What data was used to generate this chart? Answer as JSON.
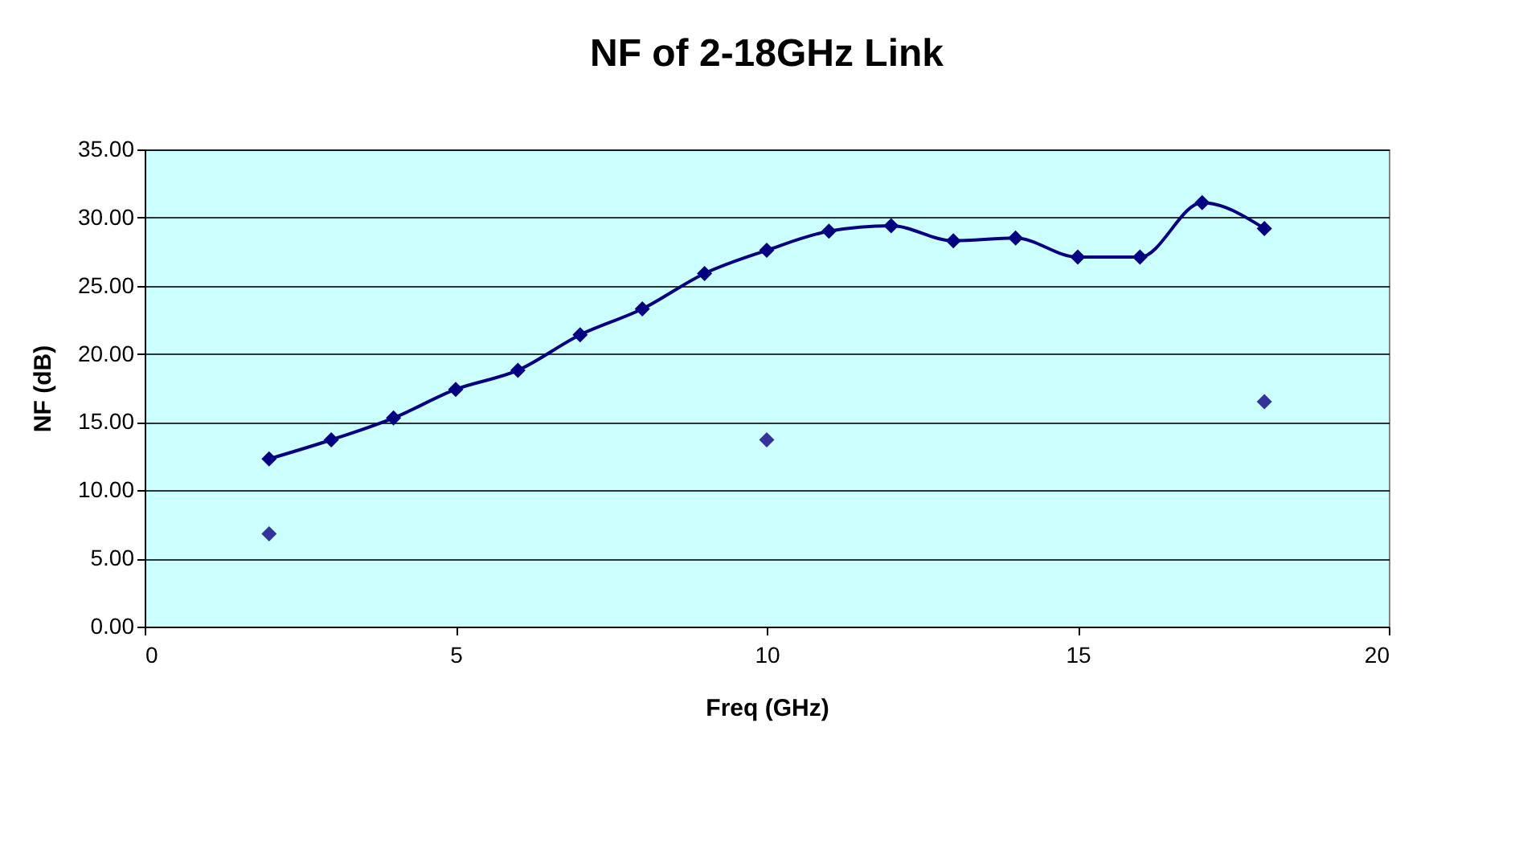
{
  "chart_data": {
    "type": "line",
    "title": "NF of 2-18GHz Link",
    "xlabel": "Freq (GHz)",
    "ylabel": "NF (dB)",
    "series": [
      {
        "color": "#000080",
        "x": [
          2,
          3,
          4,
          5,
          6,
          7,
          8,
          9,
          10,
          11,
          12,
          13,
          14,
          15,
          16,
          17,
          18
        ],
        "values": [
          12.3,
          13.7,
          15.3,
          17.4,
          18.8,
          21.4,
          23.3,
          25.9,
          27.6,
          29.0,
          29.4,
          28.3,
          28.5,
          27.1,
          27.1,
          31.1,
          29.2
        ]
      },
      {
        "type": "scatter",
        "color": "#333399",
        "x": [
          2,
          10,
          18
        ],
        "values": [
          6.8,
          13.7,
          16.5
        ]
      }
    ],
    "xlim": [
      0,
      20
    ],
    "xticks": [
      0,
      5,
      10,
      15,
      20
    ],
    "ylim": [
      0,
      35
    ],
    "yticks": [
      {
        "value": 0,
        "label": "0.00"
      },
      {
        "value": 5,
        "label": "5.00"
      },
      {
        "value": 10,
        "label": "10.00"
      },
      {
        "value": 15,
        "label": "15.00"
      },
      {
        "value": 20,
        "label": "20.00"
      },
      {
        "value": 25,
        "label": "25.00"
      },
      {
        "value": 30,
        "label": "30.00"
      },
      {
        "value": 35,
        "label": "35.00"
      }
    ],
    "grid": "y",
    "marker": "diamond",
    "line_style": "solid",
    "legend": false
  }
}
